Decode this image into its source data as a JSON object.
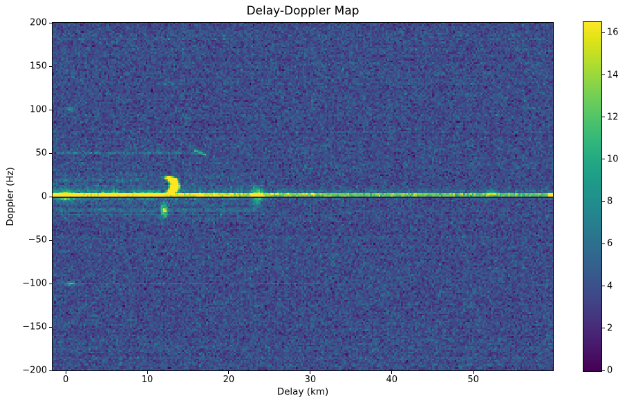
{
  "chart_data": {
    "type": "heatmap",
    "title": "Delay-Doppler Map",
    "xlabel": "Delay (km)",
    "ylabel": "Doppler (Hz)",
    "x_range": [
      -1.62,
      59.78
    ],
    "y_range": [
      -200,
      200
    ],
    "x_ticks": [
      0,
      10,
      20,
      30,
      40,
      50
    ],
    "y_ticks": [
      200,
      150,
      100,
      50,
      0,
      -50,
      -100,
      -150,
      -200
    ],
    "colormap": "viridis",
    "colorbar": {
      "vmin": 0,
      "vmax": 16.5,
      "ticks": [
        0,
        2,
        4,
        6,
        8,
        10,
        12,
        14,
        16
      ]
    },
    "grid_resolution": {
      "nx": 290,
      "ny": 202
    },
    "noise": {
      "mean": 3.8,
      "std": 1.05,
      "row_banding": 0.18,
      "seed": 42,
      "speckle_prob": 0.03,
      "speckle_amp": 1.8
    },
    "central_haze": {
      "doppler_halfwidth": 27,
      "delay_max": 26,
      "boost": 0.9
    },
    "features": [
      {
        "type": "ridge",
        "doppler": 2,
        "sigma": 1.1,
        "base_amp": 9.8,
        "near_amp": 3.3,
        "near_center": 5,
        "near_width": 15,
        "flicker": 2.2,
        "halo_amp": 2.4,
        "halo_sigma": 4.5,
        "halo_decay": 30
      },
      {
        "type": "flares",
        "direction": "up",
        "prob": 0.3,
        "delay_min": -1.6,
        "delay_max": 31,
        "f_base": 2.5,
        "len_min": 2,
        "len_max": 11,
        "amp_min": 2,
        "amp_max": 6.5
      },
      {
        "type": "flares",
        "direction": "down",
        "prob": 0.12,
        "delay_min": -1.6,
        "delay_max": 22,
        "f_base": -2,
        "len_min": 2,
        "len_max": 6,
        "amp_min": 1.5,
        "amp_max": 4
      },
      {
        "type": "blob",
        "delay": 0,
        "doppler": 1,
        "sigma_d": 0.7,
        "sigma_f": 3.5,
        "amp": 13
      },
      {
        "type": "blob",
        "delay": 5.3,
        "doppler": 2,
        "sigma_d": 0.6,
        "sigma_f": 2,
        "amp": 6
      },
      {
        "type": "blob",
        "delay": 10.3,
        "doppler": 2,
        "sigma_d": 0.8,
        "sigma_f": 2.5,
        "amp": 9
      },
      {
        "type": "blob",
        "delay": 23.5,
        "doppler": 1,
        "sigma_d": 0.45,
        "sigma_f": 7,
        "amp": 8
      },
      {
        "type": "blob",
        "delay": 52.2,
        "doppler": 4.5,
        "sigma_d": 0.5,
        "sigma_f": 2,
        "amp": 5.5
      },
      {
        "type": "blob",
        "delay": 59.5,
        "doppler": 2,
        "sigma_d": 0.25,
        "sigma_f": 1.2,
        "amp": 10
      },
      {
        "type": "blob",
        "delay": 0.6,
        "doppler": 100,
        "sigma_d": 0.35,
        "sigma_f": 1.5,
        "amp": 6
      },
      {
        "type": "blob",
        "delay": 0.6,
        "doppler": -100,
        "sigma_d": 0.4,
        "sigma_f": 1.5,
        "amp": 7
      },
      {
        "type": "band",
        "doppler": 50.5,
        "sigma": 1.0,
        "delay_min": -1.6,
        "delay_max": 17.5,
        "amp": 3.2
      },
      {
        "type": "band",
        "doppler": 19,
        "sigma": 1.2,
        "delay_min": -1.6,
        "delay_max": 13,
        "amp": 2.2
      },
      {
        "type": "band",
        "doppler": -16,
        "sigma": 1.2,
        "delay_min": -1.6,
        "delay_max": 25,
        "amp": 2.4
      },
      {
        "type": "band",
        "doppler": -21,
        "sigma": 1.0,
        "delay_min": -1.6,
        "delay_max": 14,
        "amp": 1.8
      },
      {
        "type": "band",
        "doppler": -100,
        "sigma": 0.9,
        "delay_min": -1.6,
        "delay_max": 33,
        "amp": 1.6
      },
      {
        "type": "streak",
        "d1": 15.7,
        "f1": 53.5,
        "d2": 17.3,
        "f2": 47.5,
        "sigma_f": 1.0,
        "amp": 9
      },
      {
        "type": "vstreak",
        "delay": 12.1,
        "f_min": -26,
        "f_max": -5,
        "sigma_d": 0.28,
        "peak_f": -16,
        "peak_sigma": 6,
        "amp": 11
      },
      {
        "type": "arc",
        "delay_center": 11.8,
        "doppler_center": 13,
        "radius_d": 1.6,
        "radius_f": 9,
        "theta_min": -1.3,
        "theta_max": 1.45,
        "amp": 6
      },
      {
        "type": "dark_line",
        "doppler": -1,
        "halfwidth": 1.0,
        "value_max": 1.0
      }
    ],
    "colors": {
      "figure_background": "#ffffff",
      "frame": "#000000",
      "cmap_low": "#440154",
      "cmap_mid": "#21918c",
      "cmap_high": "#fde725",
      "background_noise": "#3d4c89"
    }
  }
}
